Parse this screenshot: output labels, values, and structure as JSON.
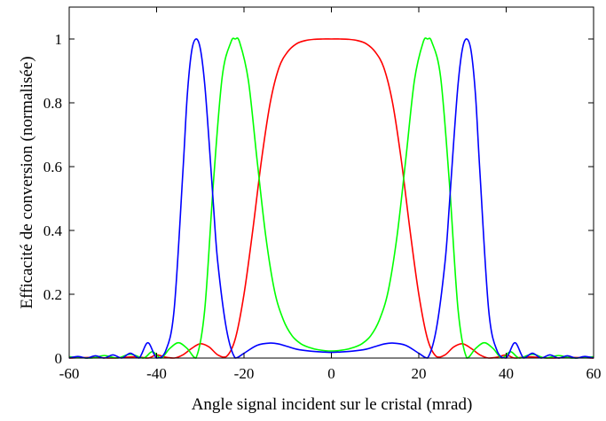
{
  "chart_data": {
    "type": "line",
    "title": "",
    "xlabel": "Angle signal incident sur le cristal (mrad)",
    "ylabel": "Efficacité de conversion (normalisée)",
    "xlim": [
      -60,
      60
    ],
    "ylim": [
      0,
      1.1
    ],
    "xticks": [
      -60,
      -40,
      -20,
      0,
      20,
      40,
      60
    ],
    "xtick_labels": [
      "-60",
      "-40",
      "-20",
      "0",
      "20",
      "40",
      "60"
    ],
    "yticks": [
      0,
      0.2,
      0.4,
      0.6,
      0.8,
      1
    ],
    "ytick_labels": [
      "0",
      "0.2",
      "0.4",
      "0.6",
      "0.8",
      "1"
    ],
    "grid": false,
    "legend": "none",
    "series": [
      {
        "color": "#ff0000",
        "x": [
          -60,
          -55,
          -50,
          -45,
          -42,
          -40,
          -38,
          -36,
          -34,
          -32,
          -30,
          -28,
          -26,
          -24,
          -22,
          -20,
          -18,
          -16,
          -14,
          -12,
          -10,
          -8,
          -6,
          -4,
          -2,
          0,
          2,
          4,
          6,
          8,
          10,
          12,
          14,
          16,
          18,
          20,
          22,
          24,
          26,
          28,
          30,
          32,
          34,
          36,
          38,
          40,
          42,
          45,
          50,
          55,
          60
        ],
        "y": [
          0.0,
          0.002,
          0.0,
          0.004,
          0.0,
          0.01,
          0.003,
          0.0,
          0.01,
          0.03,
          0.045,
          0.035,
          0.01,
          0.005,
          0.06,
          0.2,
          0.4,
          0.62,
          0.8,
          0.91,
          0.96,
          0.985,
          0.995,
          0.999,
          1.0,
          1.0,
          1.0,
          0.999,
          0.995,
          0.985,
          0.96,
          0.91,
          0.8,
          0.62,
          0.4,
          0.2,
          0.06,
          0.005,
          0.01,
          0.035,
          0.045,
          0.03,
          0.01,
          0.0,
          0.003,
          0.01,
          0.0,
          0.004,
          0.0,
          0.002,
          0.0
        ]
      },
      {
        "color": "#00ff00",
        "x": [
          -60,
          -55,
          -52,
          -49,
          -46,
          -43,
          -41,
          -39,
          -37,
          -35,
          -33,
          -31,
          -29,
          -27,
          -25,
          -23,
          -22,
          -21,
          -19,
          -17,
          -15,
          -13,
          -11,
          -9,
          -7,
          -5,
          -3,
          0,
          3,
          5,
          7,
          9,
          11,
          13,
          15,
          17,
          19,
          21,
          22,
          23,
          25,
          27,
          29,
          31,
          33,
          35,
          37,
          39,
          41,
          43,
          46,
          49,
          52,
          55,
          60
        ],
        "y": [
          0.004,
          0.0,
          0.008,
          0.0,
          0.012,
          0.0,
          0.02,
          0.0,
          0.03,
          0.048,
          0.03,
          0.0,
          0.15,
          0.55,
          0.88,
          0.99,
          1.0,
          0.99,
          0.87,
          0.62,
          0.38,
          0.21,
          0.12,
          0.07,
          0.045,
          0.033,
          0.026,
          0.022,
          0.026,
          0.033,
          0.045,
          0.07,
          0.12,
          0.21,
          0.38,
          0.62,
          0.87,
          0.99,
          1.0,
          0.99,
          0.88,
          0.55,
          0.15,
          0.0,
          0.03,
          0.048,
          0.03,
          0.0,
          0.02,
          0.0,
          0.012,
          0.0,
          0.008,
          0.0,
          0.004
        ]
      },
      {
        "color": "#0000ff",
        "x": [
          -60,
          -58,
          -56,
          -54,
          -52,
          -50,
          -48,
          -46,
          -44,
          -42,
          -40,
          -38,
          -36,
          -34,
          -33,
          -32,
          -31,
          -30,
          -29,
          -28,
          -27,
          -26,
          -24,
          -22,
          -20,
          -17,
          -14,
          -12,
          -10,
          -8,
          -5,
          -2,
          0,
          2,
          5,
          8,
          10,
          12,
          14,
          17,
          20,
          22,
          24,
          26,
          27,
          28,
          29,
          30,
          31,
          32,
          33,
          34,
          36,
          38,
          40,
          42,
          44,
          46,
          48,
          50,
          52,
          54,
          56,
          58,
          60
        ],
        "y": [
          0.0,
          0.005,
          0.0,
          0.007,
          0.0,
          0.01,
          0.0,
          0.015,
          0.0,
          0.048,
          0.0,
          0.02,
          0.15,
          0.58,
          0.82,
          0.96,
          1.0,
          0.97,
          0.86,
          0.68,
          0.48,
          0.3,
          0.09,
          0.0,
          0.015,
          0.04,
          0.047,
          0.044,
          0.036,
          0.028,
          0.022,
          0.019,
          0.018,
          0.019,
          0.022,
          0.028,
          0.036,
          0.044,
          0.047,
          0.04,
          0.015,
          0.0,
          0.09,
          0.3,
          0.48,
          0.68,
          0.86,
          0.97,
          1.0,
          0.96,
          0.82,
          0.58,
          0.15,
          0.02,
          0.0,
          0.048,
          0.0,
          0.015,
          0.0,
          0.01,
          0.0,
          0.007,
          0.0,
          0.005,
          0.0
        ]
      }
    ]
  }
}
